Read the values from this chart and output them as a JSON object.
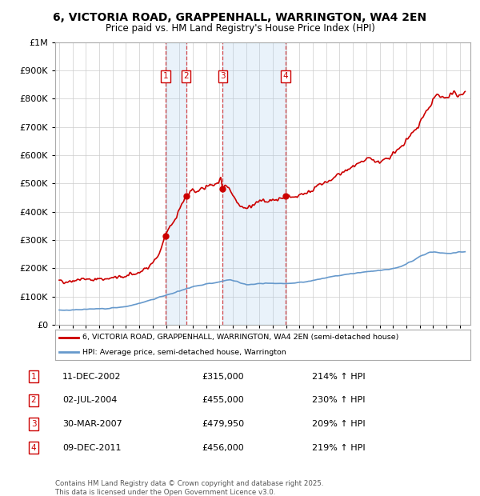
{
  "title_line1": "6, VICTORIA ROAD, GRAPPENHALL, WARRINGTON, WA4 2EN",
  "title_line2": "Price paid vs. HM Land Registry's House Price Index (HPI)",
  "red_line_label": "6, VICTORIA ROAD, GRAPPENHALL, WARRINGTON, WA4 2EN (semi-detached house)",
  "blue_line_label": "HPI: Average price, semi-detached house, Warrington",
  "footer_line1": "Contains HM Land Registry data © Crown copyright and database right 2025.",
  "footer_line2": "This data is licensed under the Open Government Licence v3.0.",
  "sales": [
    {
      "num": 1,
      "date": "11-DEC-2002",
      "price": "£315,000",
      "hpi": "214% ↑ HPI",
      "year": 2002.95
    },
    {
      "num": 2,
      "date": "02-JUL-2004",
      "price": "£455,000",
      "hpi": "230% ↑ HPI",
      "year": 2004.5
    },
    {
      "num": 3,
      "date": "30-MAR-2007",
      "price": "£479,950",
      "hpi": "209% ↑ HPI",
      "year": 2007.25
    },
    {
      "num": 4,
      "date": "09-DEC-2011",
      "price": "£456,000",
      "hpi": "219% ↑ HPI",
      "year": 2011.95
    }
  ],
  "sale_values": [
    315000,
    455000,
    479950,
    456000
  ],
  "ylim": [
    0,
    1000000
  ],
  "yticks": [
    0,
    100000,
    200000,
    300000,
    400000,
    500000,
    600000,
    700000,
    800000,
    900000,
    1000000
  ],
  "background_color": "#ffffff",
  "grid_color": "#cccccc",
  "red_color": "#cc0000",
  "blue_color": "#6699cc",
  "shade_color": "#ddeeff",
  "marker_box_color": "#cc0000",
  "xlim_left": 1994.7,
  "xlim_right": 2025.8
}
